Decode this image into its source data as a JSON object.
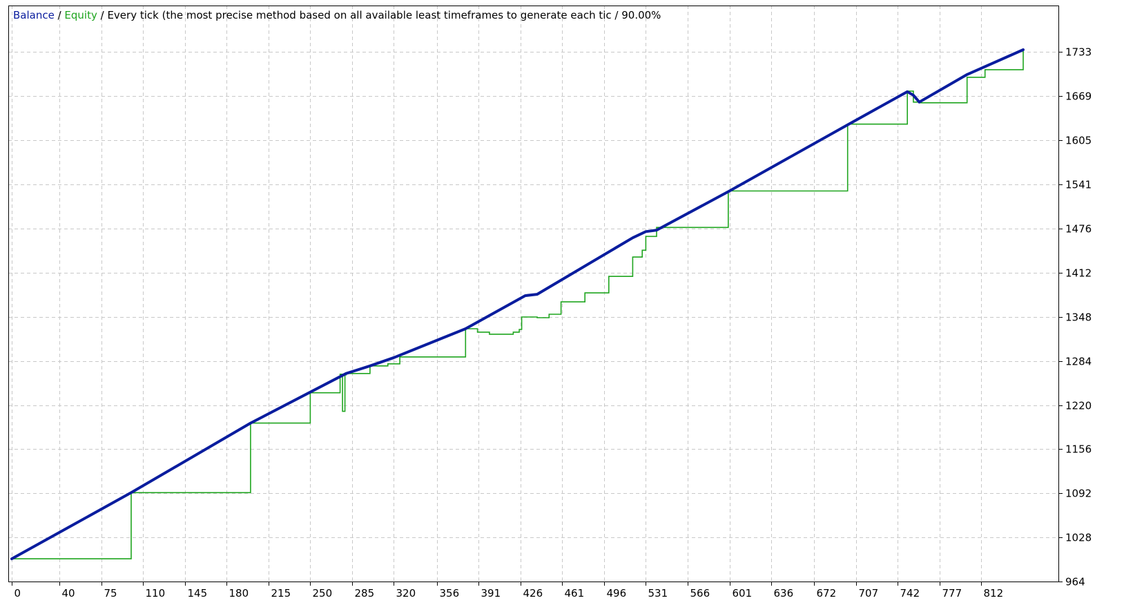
{
  "legend": {
    "balance_label": "Balance",
    "separator": " / ",
    "equity_label": "Equity",
    "description": " / Every tick (the most precise method based on all available least timeframes to generate each tic / 90.00%"
  },
  "colors": {
    "balance": "#0a1d9e",
    "equity": "#1fa51f",
    "grid": "#c8c8c8",
    "axis": "#000000",
    "background": "#ffffff"
  },
  "chart_data": {
    "type": "line",
    "grid": true,
    "xlim": [
      0,
      847
    ],
    "ylim": [
      964,
      1733
    ],
    "x_ticks": [
      0,
      40,
      75,
      110,
      145,
      180,
      215,
      250,
      285,
      320,
      356,
      391,
      426,
      461,
      496,
      531,
      566,
      601,
      636,
      672,
      707,
      742,
      777,
      812
    ],
    "y_ticks": [
      964,
      1028,
      1092,
      1156,
      1220,
      1284,
      1348,
      1412,
      1476,
      1541,
      1605,
      1669,
      1733
    ],
    "series": [
      {
        "name": "Balance",
        "x": [
          0,
          100,
          200,
          280,
          300,
          320,
          380,
          430,
          440,
          520,
          531,
          540,
          600,
          700,
          750,
          755,
          760,
          800,
          847
        ],
        "y": [
          997,
          1093,
          1194,
          1266,
          1277,
          1289,
          1331,
          1379,
          1381,
          1463,
          1472,
          1474,
          1530,
          1627,
          1675,
          1670,
          1660,
          1700,
          1736
        ]
      },
      {
        "name": "Equity",
        "x": [
          0,
          100,
          200,
          250,
          275,
          277,
          278,
          279,
          280,
          300,
          315,
          325,
          380,
          390,
          400,
          410,
          420,
          425,
          427,
          440,
          450,
          460,
          480,
          500,
          520,
          528,
          531,
          540,
          600,
          700,
          750,
          755,
          760,
          800,
          810,
          815,
          847
        ],
        "y": [
          997,
          1093,
          1194,
          1238,
          1265,
          1211,
          1211,
          1264,
          1266,
          1277,
          1280,
          1290,
          1331,
          1326,
          1323,
          1323,
          1326,
          1330,
          1348,
          1347,
          1352,
          1370,
          1383,
          1407,
          1435,
          1445,
          1465,
          1478,
          1531,
          1628,
          1676,
          1660,
          1659,
          1696,
          1696,
          1707,
          1736
        ]
      }
    ]
  }
}
